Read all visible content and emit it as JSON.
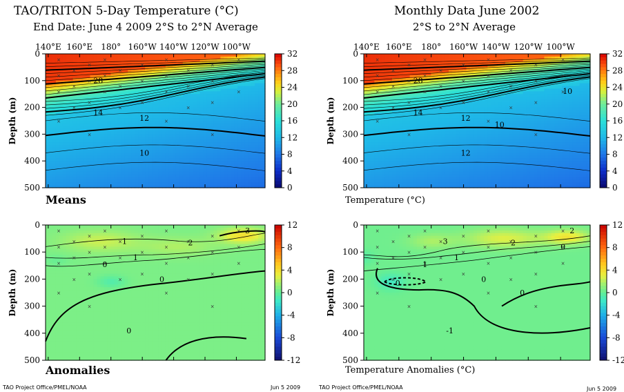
{
  "left": {
    "title": "TAO/TRITON 5-Day Temperature (°C)",
    "subtitle": "End Date: June 4 2009   2°S to 2°N Average",
    "top_label": "Means",
    "bottom_label": "Anomalies"
  },
  "right": {
    "title": "Monthly Data June 2002",
    "subtitle": "2°S to 2°N Average",
    "top_label": "Temperature  (°C)",
    "bottom_label": "Temperature Anomalies (°C)"
  },
  "footer": {
    "left_credit": "TAO Project Office/PMEL/NOAA",
    "left_date": "Jun  5 2009",
    "right_credit": "TAO Project Office/PMEL/NOAA",
    "right_date": "Jun  5 2009"
  },
  "chart_data": [
    {
      "type": "heatmap",
      "panel": "left-means",
      "xlabel": "",
      "ylabel": "Depth (m)",
      "x_ticks": [
        "140°E",
        "160°E",
        "180°",
        "160°W",
        "140°W",
        "120°W",
        "100°W"
      ],
      "y_ticks": [
        0,
        100,
        200,
        300,
        400,
        500
      ],
      "ylim": [
        0,
        500
      ],
      "colorbar_ticks": [
        32,
        28,
        24,
        20,
        16,
        12,
        8,
        4,
        0
      ],
      "contour_labels": [
        "28",
        "14",
        "12",
        "10"
      ]
    },
    {
      "type": "heatmap",
      "panel": "left-anomalies",
      "ylabel": "Depth (m)",
      "y_ticks": [
        0,
        100,
        200,
        300,
        400,
        500
      ],
      "ylim": [
        0,
        500
      ],
      "colorbar_ticks": [
        12,
        8,
        4,
        0,
        -4,
        -8,
        -12
      ],
      "contour_labels": [
        "3",
        "1",
        "2",
        "0",
        "1",
        "0",
        "0"
      ]
    },
    {
      "type": "heatmap",
      "panel": "right-means",
      "ylabel": "Depth (m)",
      "x_ticks": [
        "140°E",
        "160°E",
        "180°",
        "160°W",
        "140°W",
        "120°W",
        "100°W"
      ],
      "y_ticks": [
        0,
        100,
        200,
        300,
        400,
        500
      ],
      "ylim": [
        0,
        500
      ],
      "colorbar_ticks": [
        32,
        28,
        24,
        20,
        16,
        12,
        8,
        4,
        0
      ],
      "contour_labels": [
        "28",
        "14",
        "12",
        "12",
        "10",
        "10"
      ]
    },
    {
      "type": "heatmap",
      "panel": "right-anomalies",
      "ylabel": "Depth (m)",
      "y_ticks": [
        0,
        100,
        200,
        300,
        400,
        500
      ],
      "ylim": [
        0,
        500
      ],
      "colorbar_ticks": [
        12,
        8,
        4,
        0,
        -4,
        -8,
        -12
      ],
      "contour_labels": [
        "2",
        "3",
        "2",
        "1",
        "1",
        "0",
        "-1",
        "0",
        "0",
        "0"
      ]
    }
  ]
}
